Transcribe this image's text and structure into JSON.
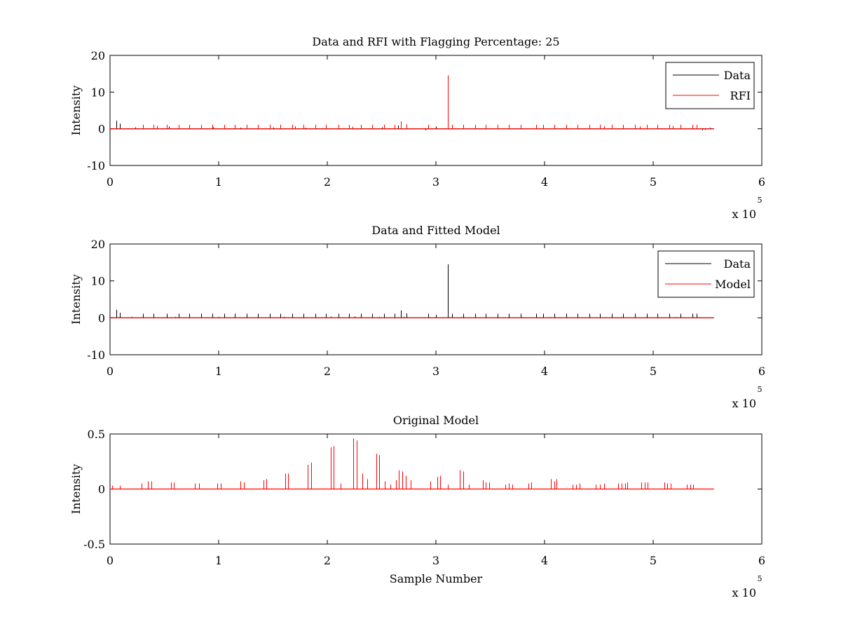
{
  "colors": {
    "data": "#000000",
    "rfi": "#ff0000",
    "model": "#ff0000",
    "axes": "#000000",
    "background": "#ffffff"
  },
  "chart_data": [
    {
      "type": "line",
      "title": "Data and RFI with Flagging Percentage: 25",
      "xlabel": "",
      "ylabel": "Intensity",
      "xlim": [
        0,
        600000
      ],
      "ylim": [
        -10,
        20
      ],
      "xticks": [
        0,
        1,
        2,
        3,
        4,
        5,
        6
      ],
      "yticks": [
        -10,
        0,
        10,
        20
      ],
      "x_multiplier": "x 10",
      "x_multiplier_exp": "5",
      "legend": {
        "position": "top-right",
        "entries": [
          "Data",
          "RFI"
        ]
      },
      "baseline": 0,
      "x_end": 556000,
      "series": [
        {
          "name": "Data",
          "color_key": "data",
          "spikes": [
            [
              6000,
              2.2
            ],
            [
              9000,
              1.4
            ],
            [
              23000,
              0.4
            ],
            [
              54000,
              0.6
            ],
            [
              95000,
              0.4
            ],
            [
              120000,
              0.3
            ],
            [
              150000,
              0.4
            ],
            [
              180000,
              0.3
            ],
            [
              250000,
              0.4
            ],
            [
              265000,
              0.9
            ],
            [
              268000,
              2.0
            ],
            [
              273000,
              1.0
            ],
            [
              290000,
              -0.4
            ],
            [
              300000,
              0.6
            ],
            [
              311000,
              14.5
            ],
            [
              430000,
              0.3
            ],
            [
              472000,
              0.3
            ],
            [
              545000,
              -0.4
            ],
            [
              548000,
              -0.3
            ],
            [
              552000,
              0.3
            ]
          ]
        },
        {
          "name": "RFI",
          "color_key": "rfi",
          "spikes": [
            [
              30000,
              1.1
            ],
            [
              40000,
              1.1
            ],
            [
              43000,
              0.8
            ],
            [
              52000,
              1.1
            ],
            [
              63000,
              1.1
            ],
            [
              73000,
              1.1
            ],
            [
              84000,
              1.1
            ],
            [
              94000,
              1.1
            ],
            [
              105000,
              1.1
            ],
            [
              115000,
              1.1
            ],
            [
              126000,
              1.1
            ],
            [
              136000,
              1.1
            ],
            [
              147000,
              1.1
            ],
            [
              157000,
              1.1
            ],
            [
              168000,
              1.1
            ],
            [
              170000,
              0.7
            ],
            [
              178000,
              1.1
            ],
            [
              189000,
              1.1
            ],
            [
              199000,
              1.1
            ],
            [
              210000,
              1.1
            ],
            [
              220000,
              1.1
            ],
            [
              223000,
              0.6
            ],
            [
              231000,
              1.1
            ],
            [
              241000,
              1.1
            ],
            [
              252000,
              1.1
            ],
            [
              262000,
              1.1
            ],
            [
              268000,
              2.0
            ],
            [
              273000,
              1.2
            ],
            [
              293000,
              1.1
            ],
            [
              311000,
              14.5
            ],
            [
              315000,
              1.1
            ],
            [
              325000,
              1.1
            ],
            [
              336000,
              1.1
            ],
            [
              346000,
              1.1
            ],
            [
              357000,
              1.1
            ],
            [
              367000,
              1.1
            ],
            [
              378000,
              1.1
            ],
            [
              392000,
              1.1
            ],
            [
              399000,
              1.1
            ],
            [
              409000,
              1.1
            ],
            [
              420000,
              1.1
            ],
            [
              430000,
              1.1
            ],
            [
              441000,
              1.1
            ],
            [
              451000,
              1.1
            ],
            [
              455000,
              0.7
            ],
            [
              462000,
              1.1
            ],
            [
              472000,
              1.1
            ],
            [
              483000,
              1.1
            ],
            [
              488000,
              0.7
            ],
            [
              494000,
              1.1
            ],
            [
              504000,
              1.1
            ],
            [
              515000,
              1.1
            ],
            [
              518000,
              0.8
            ],
            [
              525000,
              1.1
            ],
            [
              536000,
              1.1
            ],
            [
              540000,
              1.1
            ]
          ]
        }
      ]
    },
    {
      "type": "line",
      "title": "Data and Fitted Model",
      "xlabel": "",
      "ylabel": "Intensity",
      "xlim": [
        0,
        600000
      ],
      "ylim": [
        -10,
        20
      ],
      "xticks": [
        0,
        1,
        2,
        3,
        4,
        5,
        6
      ],
      "yticks": [
        -10,
        0,
        10,
        20
      ],
      "x_multiplier": "x 10",
      "x_multiplier_exp": "5",
      "legend": {
        "position": "top-right",
        "entries": [
          "Data",
          "Model"
        ]
      },
      "baseline": 0,
      "x_end": 556000,
      "series": [
        {
          "name": "Data",
          "color_key": "data",
          "spikes": [
            [
              6000,
              2.2
            ],
            [
              9000,
              1.4
            ],
            [
              30000,
              1.1
            ],
            [
              40000,
              1.1
            ],
            [
              52000,
              1.1
            ],
            [
              63000,
              1.1
            ],
            [
              73000,
              1.1
            ],
            [
              84000,
              1.1
            ],
            [
              94000,
              1.1
            ],
            [
              105000,
              1.1
            ],
            [
              115000,
              1.1
            ],
            [
              126000,
              1.1
            ],
            [
              136000,
              1.1
            ],
            [
              147000,
              1.1
            ],
            [
              157000,
              1.1
            ],
            [
              168000,
              1.1
            ],
            [
              178000,
              1.1
            ],
            [
              189000,
              1.1
            ],
            [
              199000,
              1.1
            ],
            [
              210000,
              1.1
            ],
            [
              220000,
              1.1
            ],
            [
              231000,
              1.1
            ],
            [
              241000,
              1.1
            ],
            [
              252000,
              1.1
            ],
            [
              262000,
              1.1
            ],
            [
              268000,
              2.0
            ],
            [
              273000,
              1.2
            ],
            [
              293000,
              1.1
            ],
            [
              300000,
              0.8
            ],
            [
              311000,
              14.5
            ],
            [
              315000,
              1.1
            ],
            [
              325000,
              1.1
            ],
            [
              336000,
              1.1
            ],
            [
              346000,
              1.1
            ],
            [
              357000,
              1.1
            ],
            [
              367000,
              1.1
            ],
            [
              378000,
              1.1
            ],
            [
              392000,
              1.1
            ],
            [
              399000,
              1.1
            ],
            [
              409000,
              1.1
            ],
            [
              420000,
              1.1
            ],
            [
              430000,
              1.1
            ],
            [
              441000,
              1.1
            ],
            [
              451000,
              1.1
            ],
            [
              462000,
              1.1
            ],
            [
              472000,
              1.1
            ],
            [
              483000,
              1.1
            ],
            [
              494000,
              1.1
            ],
            [
              504000,
              1.1
            ],
            [
              515000,
              1.1
            ],
            [
              525000,
              1.1
            ],
            [
              536000,
              1.1
            ],
            [
              540000,
              1.1
            ]
          ]
        },
        {
          "name": "Model",
          "color_key": "model",
          "spikes": [
            [
              20000,
              0.3
            ],
            [
              60000,
              0.3
            ],
            [
              100000,
              0.3
            ],
            [
              160000,
              0.3
            ],
            [
              203000,
              0.4
            ],
            [
              225000,
              0.45
            ],
            [
              248000,
              0.3
            ],
            [
              270000,
              0.3
            ],
            [
              323000,
              0.2
            ],
            [
              380000,
              0.2
            ],
            [
              405000,
              0.2
            ],
            [
              470000,
              0.2
            ],
            [
              520000,
              0.2
            ]
          ]
        }
      ]
    },
    {
      "type": "line",
      "title": "Original Model",
      "xlabel": "Sample Number",
      "ylabel": "Intensity",
      "xlim": [
        0,
        600000
      ],
      "ylim": [
        -0.5,
        0.5
      ],
      "xticks": [
        0,
        1,
        2,
        3,
        4,
        5,
        6
      ],
      "yticks": [
        -0.5,
        0,
        0.5
      ],
      "ytick_labels": [
        "-0.5",
        "0",
        "0.5"
      ],
      "x_multiplier": "x 10",
      "x_multiplier_exp": "5",
      "legend": null,
      "baseline": 0,
      "x_end": 556000,
      "series": [
        {
          "name": "",
          "color_key": "model",
          "spikes": [
            [
              2000,
              0.03
            ],
            [
              9000,
              0.03
            ],
            [
              29000,
              0.05
            ],
            [
              35000,
              0.07
            ],
            [
              38000,
              0.07
            ],
            [
              56000,
              0.06
            ],
            [
              59000,
              0.06
            ],
            [
              78000,
              0.05
            ],
            [
              82000,
              0.05
            ],
            [
              99000,
              0.05
            ],
            [
              102000,
              0.05
            ],
            [
              120000,
              0.07
            ],
            [
              123000,
              0.06
            ],
            [
              141000,
              0.08
            ],
            [
              144000,
              0.09
            ],
            [
              161000,
              0.14
            ],
            [
              164000,
              0.14
            ],
            [
              182000,
              0.22
            ],
            [
              185000,
              0.24
            ],
            [
              203000,
              0.38
            ],
            [
              206000,
              0.39
            ],
            [
              212000,
              0.05
            ],
            [
              224000,
              0.46
            ],
            [
              227000,
              0.44
            ],
            [
              232000,
              0.14
            ],
            [
              237000,
              0.09
            ],
            [
              245000,
              0.32
            ],
            [
              248000,
              0.31
            ],
            [
              253000,
              0.07
            ],
            [
              258000,
              0.04
            ],
            [
              263000,
              0.08
            ],
            [
              266000,
              0.17
            ],
            [
              269000,
              0.16
            ],
            [
              272000,
              0.12
            ],
            [
              277000,
              0.08
            ],
            [
              295000,
              0.07
            ],
            [
              301000,
              0.11
            ],
            [
              304000,
              0.12
            ],
            [
              311000,
              0.04
            ],
            [
              322000,
              0.17
            ],
            [
              325000,
              0.16
            ],
            [
              330000,
              0.04
            ],
            [
              343000,
              0.08
            ],
            [
              346000,
              0.06
            ],
            [
              349000,
              0.06
            ],
            [
              364000,
              0.04
            ],
            [
              367000,
              0.05
            ],
            [
              370000,
              0.04
            ],
            [
              385000,
              0.05
            ],
            [
              388000,
              0.06
            ],
            [
              406000,
              0.09
            ],
            [
              409000,
              0.07
            ],
            [
              411000,
              0.09
            ],
            [
              426000,
              0.04
            ],
            [
              429000,
              0.04
            ],
            [
              432000,
              0.05
            ],
            [
              447000,
              0.04
            ],
            [
              451000,
              0.04
            ],
            [
              455000,
              0.05
            ],
            [
              468000,
              0.05
            ],
            [
              471000,
              0.05
            ],
            [
              474000,
              0.05
            ],
            [
              476000,
              0.06
            ],
            [
              489000,
              0.06
            ],
            [
              492000,
              0.06
            ],
            [
              495000,
              0.06
            ],
            [
              510000,
              0.06
            ],
            [
              513000,
              0.05
            ],
            [
              516000,
              0.05
            ],
            [
              531000,
              0.04
            ],
            [
              534000,
              0.04
            ],
            [
              537000,
              0.04
            ]
          ]
        }
      ]
    }
  ]
}
